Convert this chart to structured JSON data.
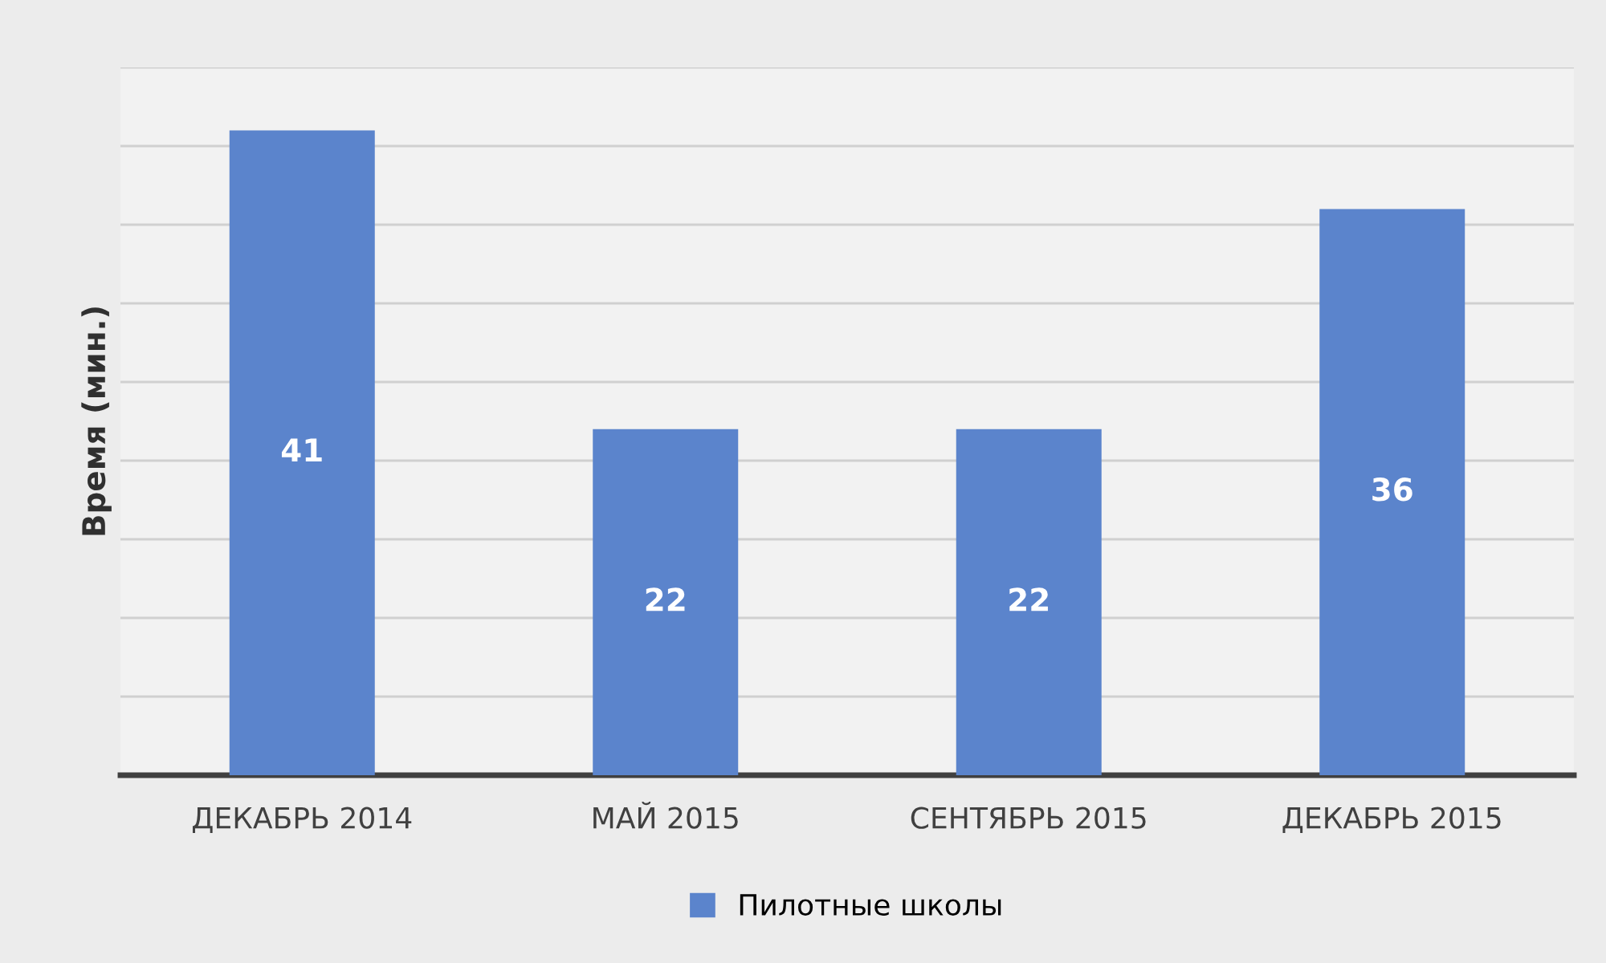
{
  "chart_data": {
    "type": "bar",
    "ylabel": "Время (мин.)",
    "categories": [
      "ДЕКАБРЬ 2014",
      "МАЙ 2015",
      "СЕНТЯБРЬ 2015",
      "ДЕКАБРЬ 2015"
    ],
    "series": [
      {
        "name": "Пилотные школы",
        "color": "#5b84cc",
        "values": [
          41,
          22,
          22,
          36
        ]
      }
    ],
    "ylim": [
      0,
      45
    ],
    "yticks": [
      {
        "value": 0,
        "label": null
      },
      {
        "value": 5,
        "label": null
      },
      {
        "value": 10,
        "label": null
      },
      {
        "value": 15,
        "label": null
      },
      {
        "value": 20,
        "label": null
      },
      {
        "value": 25,
        "label": null
      },
      {
        "value": 30,
        "label": null
      },
      {
        "value": 35,
        "label": null
      },
      {
        "value": 40,
        "label": null
      },
      {
        "value": 45,
        "label": null
      }
    ],
    "tick_labels": "x",
    "grid": "y",
    "legend": "bottom",
    "data_labels": true
  }
}
